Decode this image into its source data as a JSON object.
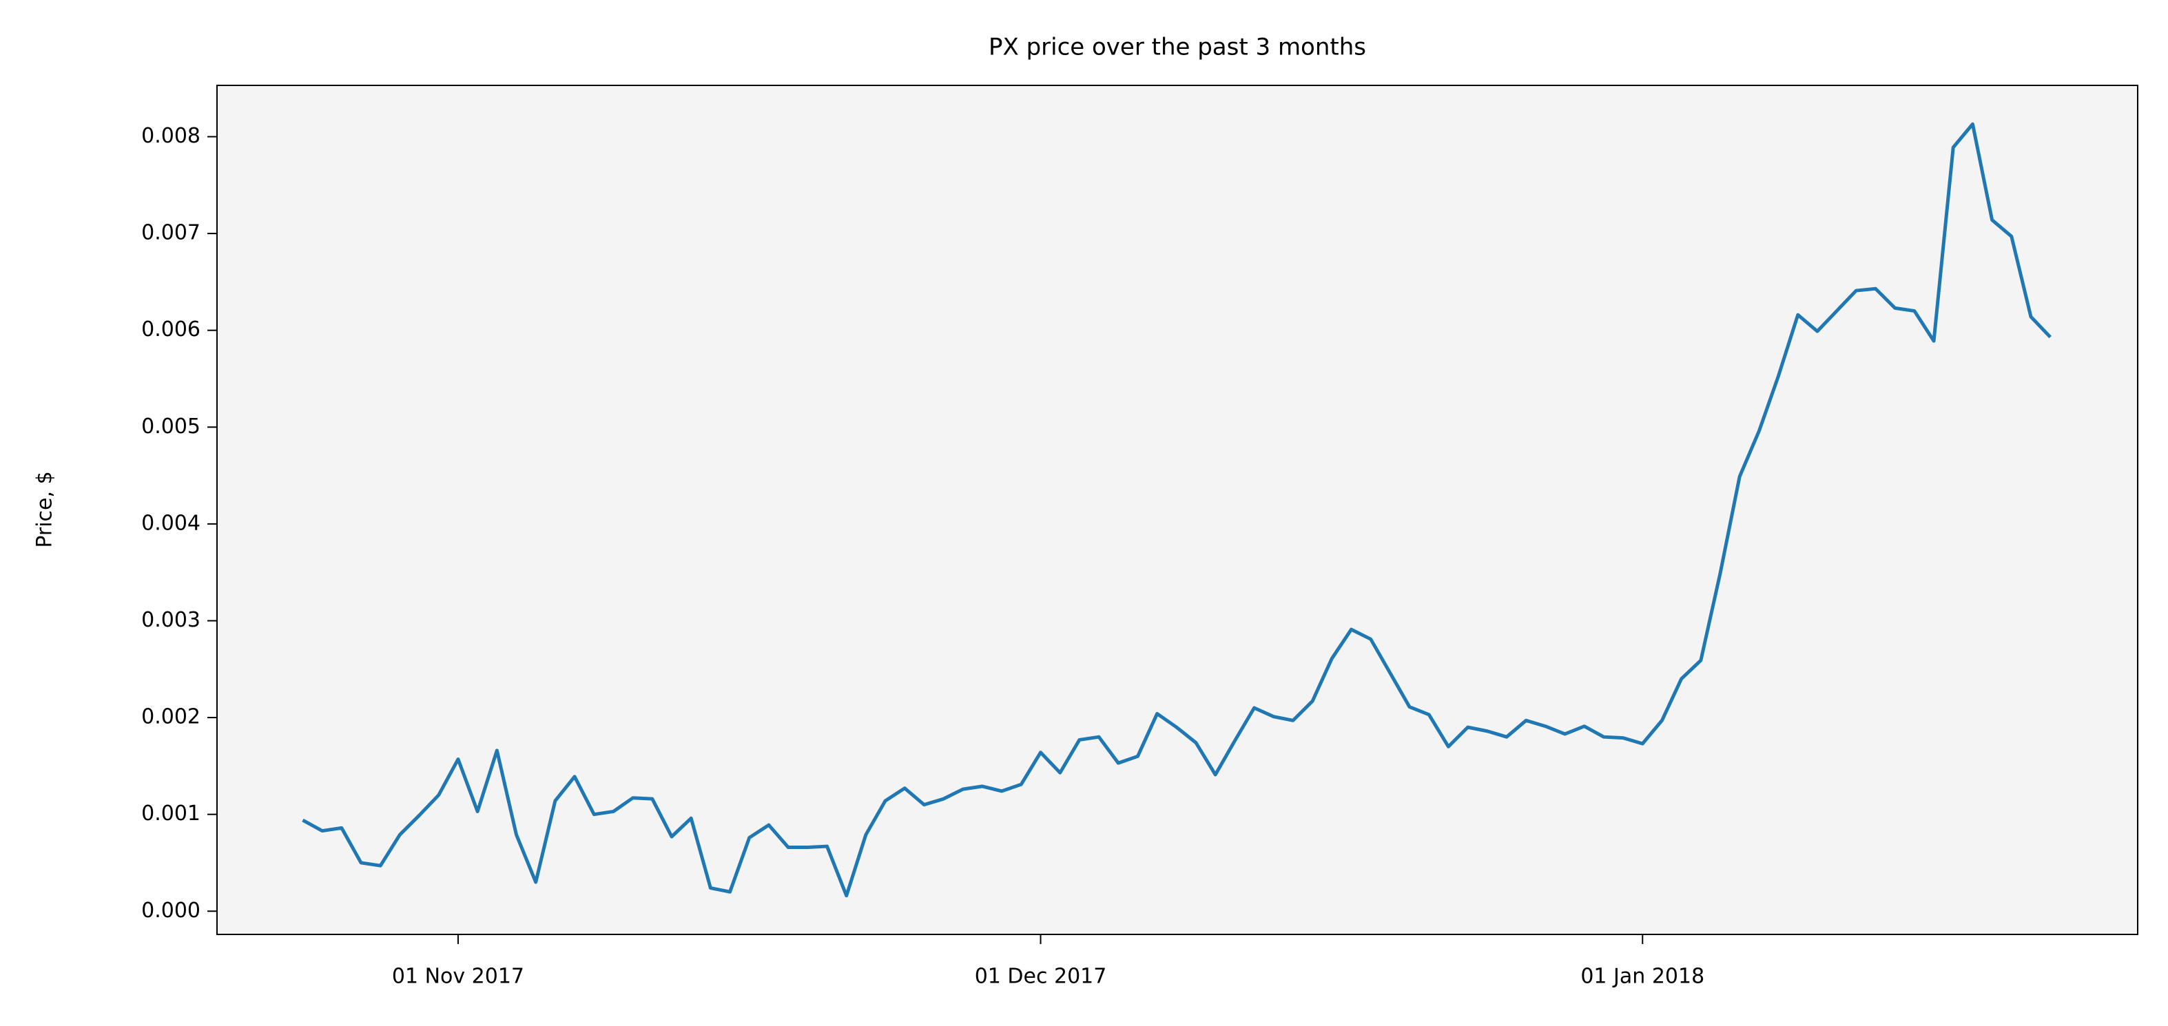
{
  "chart_data": {
    "type": "line",
    "title": "PX price over the past 3 months",
    "y_label": "Price, $",
    "x": [
      "2017-10-24",
      "2017-10-25",
      "2017-10-26",
      "2017-10-27",
      "2017-10-28",
      "2017-10-29",
      "2017-10-30",
      "2017-10-31",
      "2017-11-01",
      "2017-11-02",
      "2017-11-03",
      "2017-11-04",
      "2017-11-05",
      "2017-11-06",
      "2017-11-07",
      "2017-11-08",
      "2017-11-09",
      "2017-11-10",
      "2017-11-11",
      "2017-11-12",
      "2017-11-13",
      "2017-11-14",
      "2017-11-15",
      "2017-11-16",
      "2017-11-17",
      "2017-11-18",
      "2017-11-19",
      "2017-11-20",
      "2017-11-21",
      "2017-11-22",
      "2017-11-23",
      "2017-11-24",
      "2017-11-25",
      "2017-11-26",
      "2017-11-27",
      "2017-11-28",
      "2017-11-29",
      "2017-11-30",
      "2017-12-01",
      "2017-12-02",
      "2017-12-03",
      "2017-12-04",
      "2017-12-05",
      "2017-12-06",
      "2017-12-07",
      "2017-12-08",
      "2017-12-09",
      "2017-12-10",
      "2017-12-11",
      "2017-12-12",
      "2017-12-13",
      "2017-12-14",
      "2017-12-15",
      "2017-12-16",
      "2017-12-17",
      "2017-12-18",
      "2017-12-19",
      "2017-12-20",
      "2017-12-21",
      "2017-12-22",
      "2017-12-23",
      "2017-12-24",
      "2017-12-25",
      "2017-12-26",
      "2017-12-27",
      "2017-12-28",
      "2017-12-29",
      "2017-12-30",
      "2017-12-31",
      "2018-01-01",
      "2018-01-02",
      "2018-01-03",
      "2018-01-04",
      "2018-01-05",
      "2018-01-06",
      "2018-01-07",
      "2018-01-08",
      "2018-01-09",
      "2018-01-10",
      "2018-01-11",
      "2018-01-12",
      "2018-01-13",
      "2018-01-14",
      "2018-01-15",
      "2018-01-16",
      "2018-01-17",
      "2018-01-18",
      "2018-01-19",
      "2018-01-20",
      "2018-01-21",
      "2018-01-22"
    ],
    "series": [
      {
        "color": "#1f77b4",
        "values": [
          0.00094,
          0.00083,
          0.00086,
          0.0005,
          0.00047,
          0.00079,
          0.00099,
          0.0012,
          0.00157,
          0.00103,
          0.00166,
          0.00079,
          0.0003,
          0.00114,
          0.00139,
          0.001,
          0.00103,
          0.00117,
          0.00116,
          0.00077,
          0.00096,
          0.00024,
          0.0002,
          0.00076,
          0.00089,
          0.00066,
          0.00066,
          0.00067,
          0.00016,
          0.00079,
          0.00114,
          0.00127,
          0.0011,
          0.00116,
          0.00126,
          0.00129,
          0.00124,
          0.00131,
          0.00164,
          0.00143,
          0.00177,
          0.0018,
          0.00153,
          0.0016,
          0.00204,
          0.0019,
          0.00174,
          0.00141,
          0.00176,
          0.0021,
          0.00201,
          0.00197,
          0.00217,
          0.00261,
          0.00291,
          0.00281,
          0.00246,
          0.00211,
          0.00203,
          0.0017,
          0.0019,
          0.00186,
          0.0018,
          0.00197,
          0.00191,
          0.00183,
          0.00191,
          0.0018,
          0.00179,
          0.00173,
          0.00197,
          0.0024,
          0.00259,
          0.00349,
          0.00449,
          0.00496,
          0.00553,
          0.00616,
          0.00599,
          0.0062,
          0.00641,
          0.00643,
          0.00623,
          0.0062,
          0.00589,
          0.00789,
          0.00813,
          0.00714,
          0.00697,
          0.00614,
          0.00593
        ]
      }
    ],
    "xlim": [
      "2017-10-19T14:00:00Z",
      "2018-01-26T12:00:00Z"
    ],
    "xticks": [
      {
        "value": "2017-11-01",
        "label": "01 Nov 2017"
      },
      {
        "value": "2017-12-01",
        "label": "01 Dec 2017"
      },
      {
        "value": "2018-01-01",
        "label": "01 Jan 2018"
      }
    ],
    "ylim": [
      -0.00024,
      0.00853
    ],
    "yticks": [
      {
        "value": 0,
        "label": "0.000"
      },
      {
        "value": 0.001,
        "label": "0.001"
      },
      {
        "value": 0.002,
        "label": "0.002"
      },
      {
        "value": 0.003,
        "label": "0.003"
      },
      {
        "value": 0.004,
        "label": "0.004"
      },
      {
        "value": 0.005,
        "label": "0.005"
      },
      {
        "value": 0.006,
        "label": "0.006"
      },
      {
        "value": 0.007,
        "label": "0.007"
      },
      {
        "value": 0.008,
        "label": "0.008"
      }
    ],
    "plot_background": "#f4f4f4"
  }
}
